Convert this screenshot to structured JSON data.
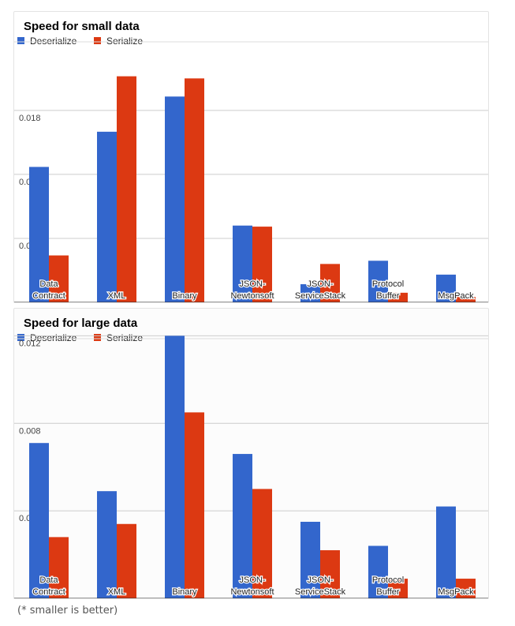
{
  "colors": {
    "deserialize": "#3366cc",
    "serialize": "#dc3912"
  },
  "footnote": "(* smaller is better)",
  "chart_data": [
    {
      "type": "bar",
      "title": "Speed for small data",
      "categories": [
        [
          "Data",
          "Contract"
        ],
        [
          "XML"
        ],
        [
          "Binary"
        ],
        [
          "JSON-",
          "Newtonsoft"
        ],
        [
          "JSON-",
          "ServiceStack"
        ],
        [
          "Protocol",
          "Buffer"
        ],
        [
          "MsgPack"
        ]
      ],
      "series": [
        {
          "name": "Deserialize",
          "values": [
            0.0127,
            0.016,
            0.0193,
            0.0072,
            0.0017,
            0.0039,
            0.0026
          ]
        },
        {
          "name": "Serialize",
          "values": [
            0.0044,
            0.0212,
            0.021,
            0.0071,
            0.0036,
            0.0009,
            0.0005
          ]
        }
      ],
      "yticks": [
        "0.006",
        "0.012",
        "0.018"
      ],
      "ylim": [
        0,
        0.0248
      ],
      "grid": true,
      "legend": "top-left"
    },
    {
      "type": "bar",
      "title": "Speed for large data",
      "categories": [
        [
          "Data",
          "Contract"
        ],
        [
          "XML"
        ],
        [
          "Binary"
        ],
        [
          "JSON-",
          "Newtonsoft"
        ],
        [
          "JSON-",
          "ServiceStack"
        ],
        [
          "Protocol",
          "Buffer"
        ],
        [
          "MsgPack"
        ]
      ],
      "series": [
        {
          "name": "Deserialize",
          "values": [
            0.0071,
            0.0049,
            0.012,
            0.0066,
            0.0035,
            0.0024,
            0.0042
          ]
        },
        {
          "name": "Serialize",
          "values": [
            0.0028,
            0.0034,
            0.0085,
            0.005,
            0.0022,
            0.0009,
            0.0009
          ]
        }
      ],
      "yticks": [
        "0.004",
        "0.008",
        "0.012"
      ],
      "ylim": [
        0,
        0.01205
      ],
      "grid": true,
      "legend": "top-left"
    }
  ]
}
